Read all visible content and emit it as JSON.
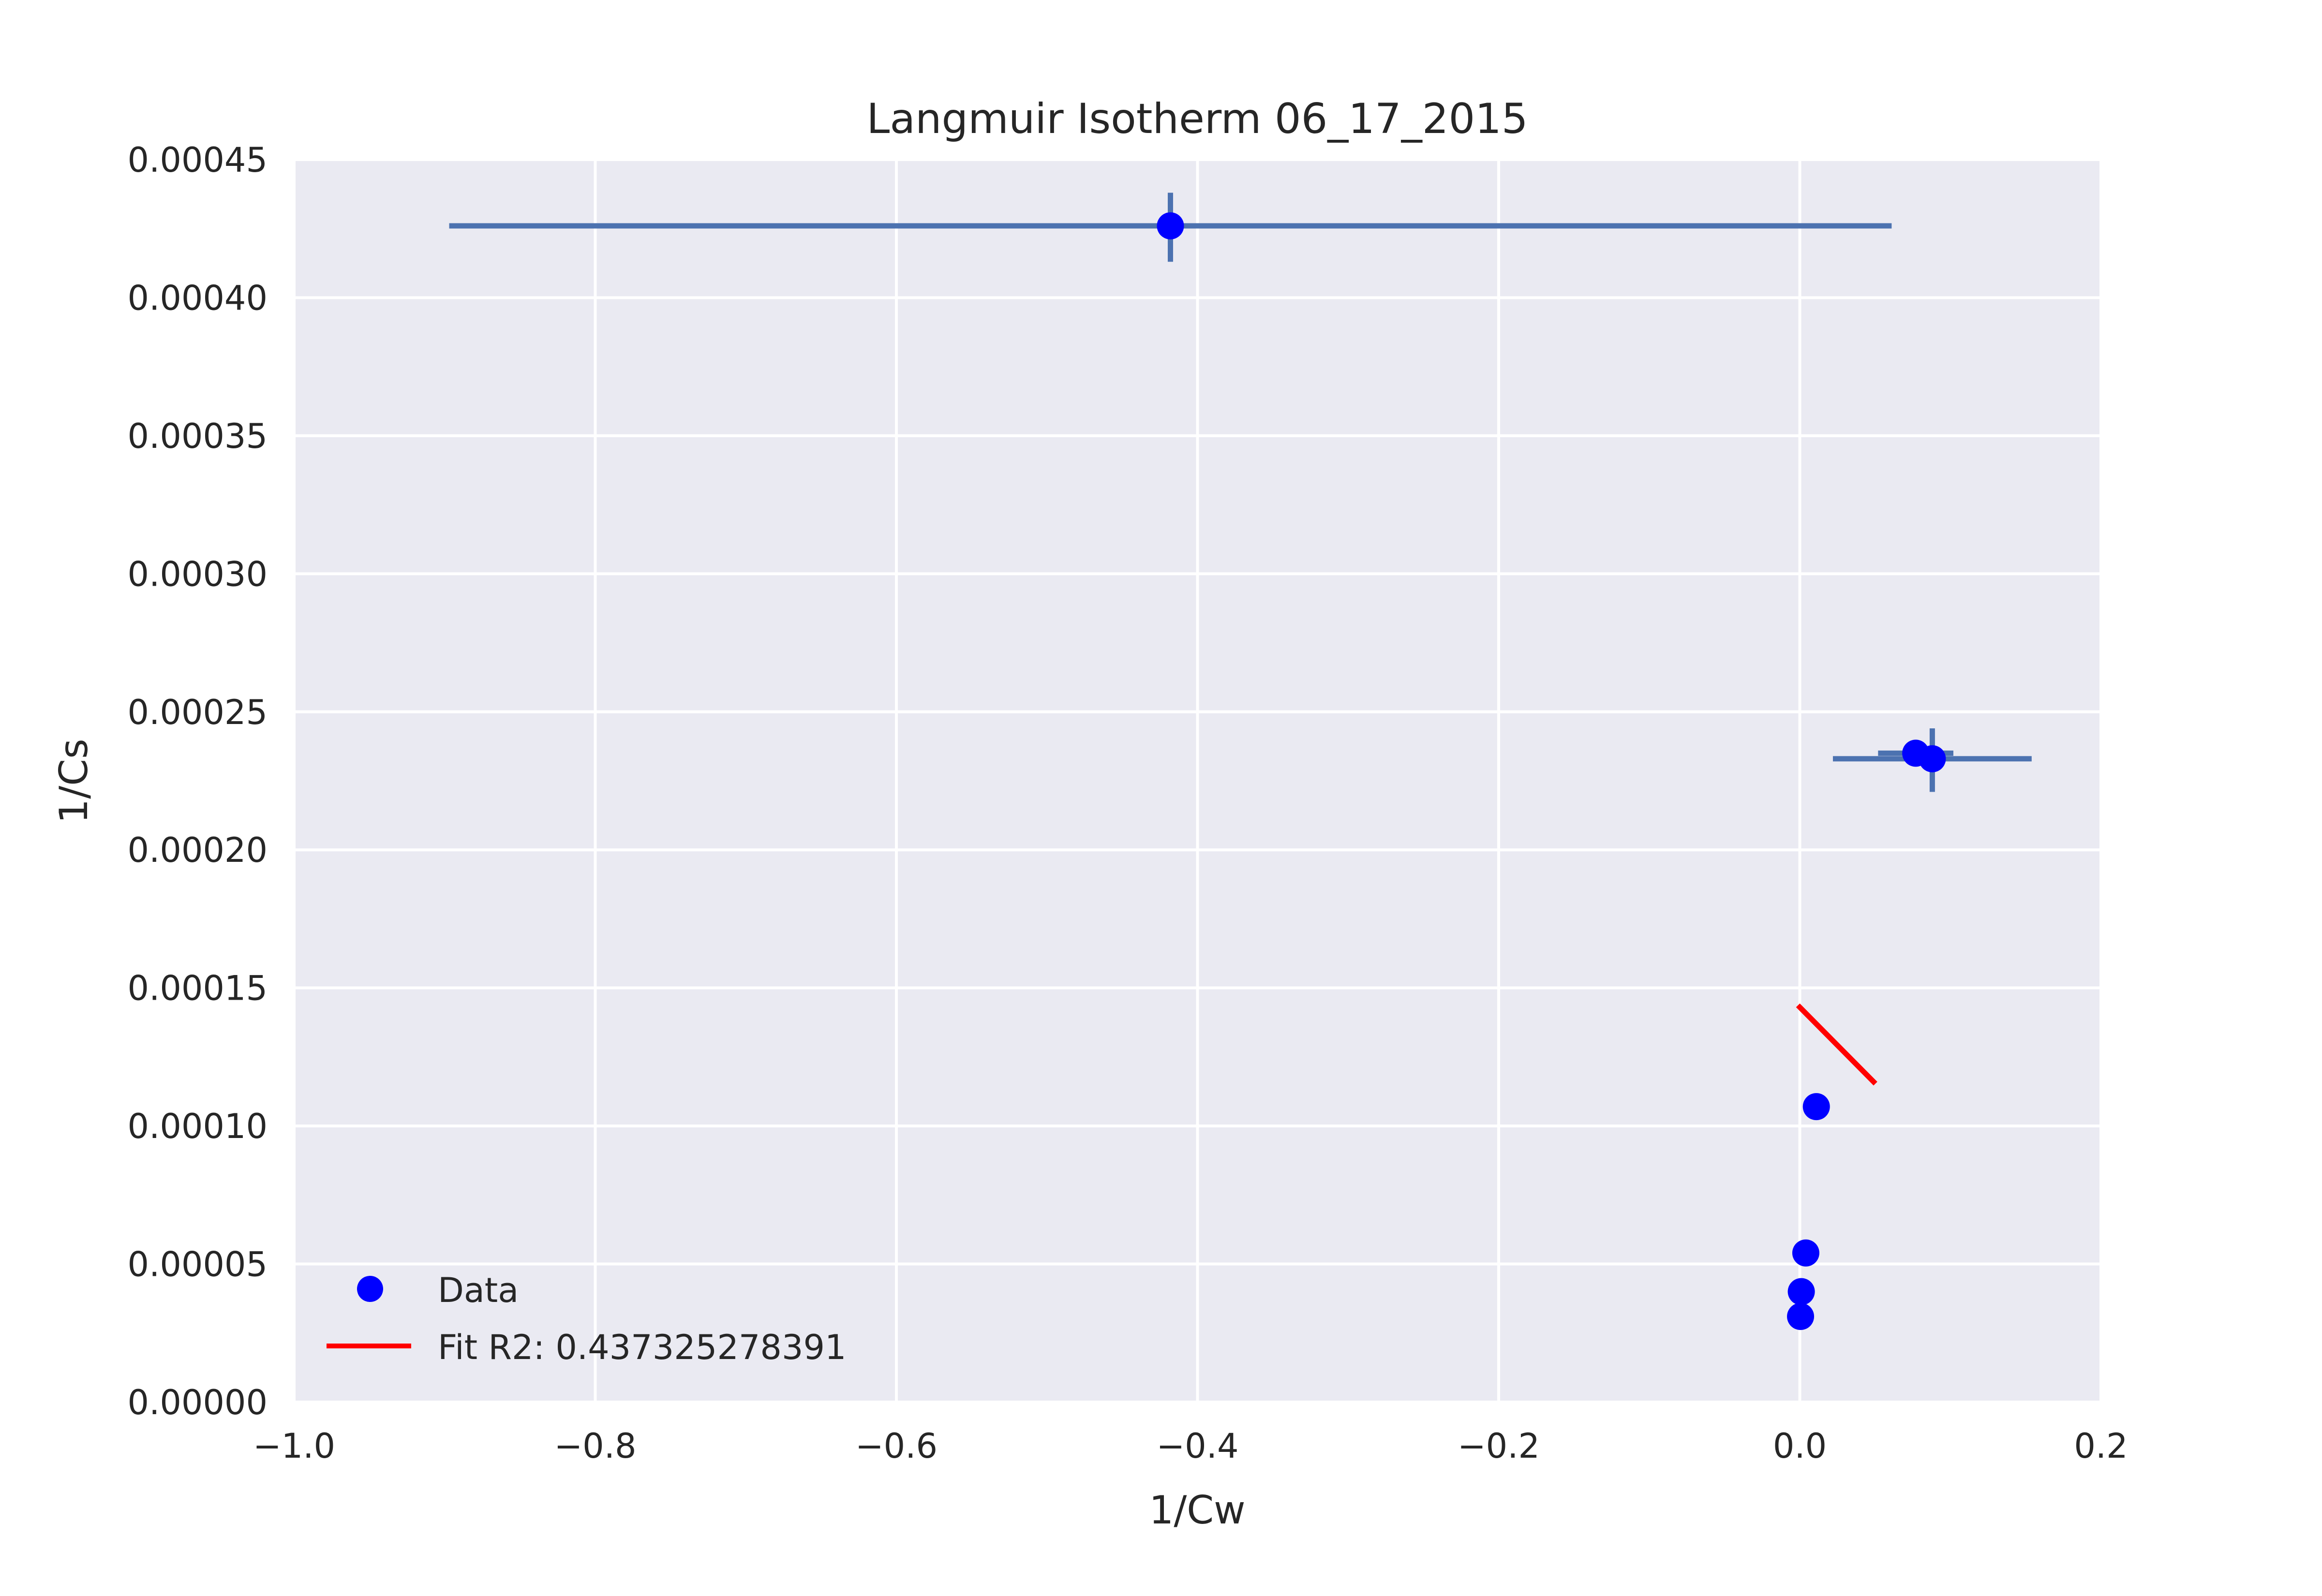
{
  "chart_data": {
    "type": "scatter",
    "title": "Langmuir Isotherm 06_17_2015",
    "xlabel": "1/Cw",
    "ylabel": "1/Cs",
    "xlim": [
      -1.0,
      0.2
    ],
    "ylim": [
      0.0,
      0.00045
    ],
    "x_ticks": [
      "−1.0",
      "−0.8",
      "−0.6",
      "−0.4",
      "−0.2",
      "0.0",
      "0.2"
    ],
    "x_tick_values": [
      -1.0,
      -0.8,
      -0.6,
      -0.4,
      -0.2,
      0.0,
      0.2
    ],
    "y_ticks": [
      "0.00000",
      "0.00005",
      "0.00010",
      "0.00015",
      "0.00020",
      "0.00025",
      "0.00030",
      "0.00035",
      "0.00040",
      "0.00045"
    ],
    "y_tick_values": [
      0.0,
      5e-05,
      0.0001,
      0.00015,
      0.0002,
      0.00025,
      0.0003,
      0.00035,
      0.0004,
      0.00045
    ],
    "grid": true,
    "legend_position": "lower-left",
    "colors": {
      "background": "#eaeaf2",
      "grid": "#ffffff",
      "data": "#0000ff",
      "fit": "#ff0000",
      "errorbar": "#4c72b0",
      "text": "#262626"
    },
    "series": [
      {
        "name": "Data",
        "kind": "points",
        "points": [
          {
            "x": -0.418,
            "y": 0.000426
          },
          {
            "x": 0.077,
            "y": 0.000235
          },
          {
            "x": 0.088,
            "y": 0.000233
          },
          {
            "x": 0.011,
            "y": 0.000107
          },
          {
            "x": 0.004,
            "y": 5.4e-05
          },
          {
            "x": 0.001,
            "y": 4e-05
          },
          {
            "x": 0.0005,
            "y": 3.1e-05
          }
        ]
      },
      {
        "name": "Fit R2: 0.437325278391",
        "kind": "line",
        "points": [
          {
            "x": 0.0,
            "y": 0.000143
          },
          {
            "x": 0.049,
            "y": 0.000116
          }
        ]
      }
    ],
    "error_bars": [
      {
        "x": -0.418,
        "y": 0.000426,
        "x_min": -0.897,
        "x_max": 0.061,
        "y_min": 0.000413,
        "y_max": 0.000438
      },
      {
        "x": 0.088,
        "y": 0.000233,
        "x_min": 0.022,
        "x_max": 0.154,
        "y_min": 0.000221,
        "y_max": 0.000244
      },
      {
        "x": 0.077,
        "y": 0.000235,
        "x_min": 0.052,
        "x_max": 0.102,
        "y_min": 0.000233,
        "y_max": 0.000237
      }
    ]
  }
}
